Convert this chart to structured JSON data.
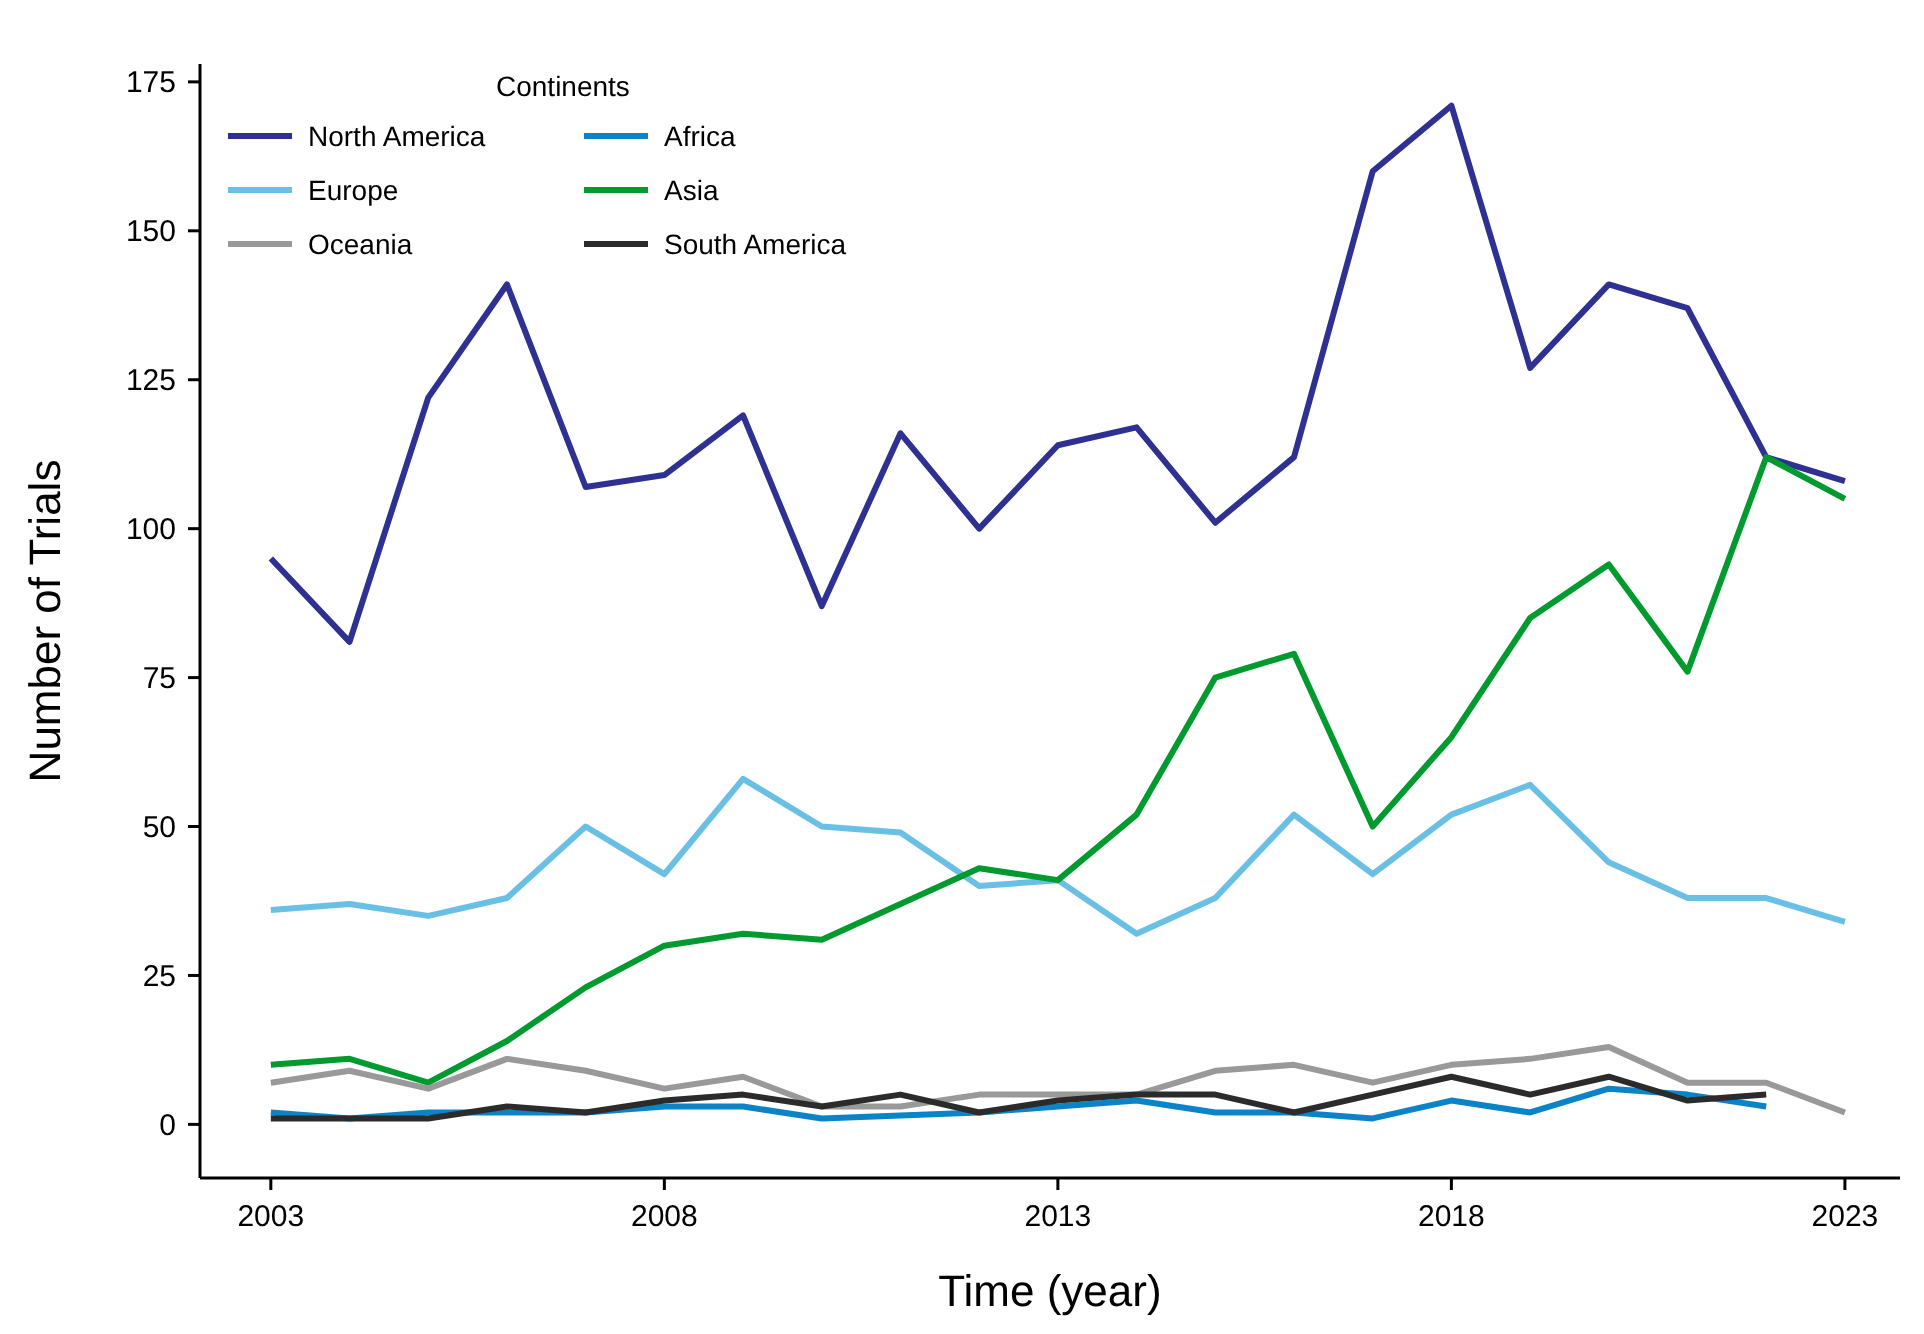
{
  "chart_data": {
    "type": "line",
    "xlabel": "Time (year)",
    "ylabel": "Number of Trials",
    "legend_title": "Continents",
    "legend": "top left",
    "grid": false,
    "x": [
      2003,
      2004,
      2005,
      2006,
      2007,
      2008,
      2009,
      2010,
      2011,
      2012,
      2013,
      2014,
      2015,
      2016,
      2017,
      2018,
      2019,
      2020,
      2021,
      2022,
      2023
    ],
    "xlim": [
      2002.1,
      2023.7
    ],
    "xticks": [
      2003,
      2008,
      2013,
      2018,
      2023
    ],
    "ylim": [
      -9,
      178
    ],
    "yticks": [
      0,
      25,
      50,
      75,
      100,
      125,
      150,
      175
    ],
    "series": [
      {
        "name": "North America",
        "color": "#2e3192",
        "values": [
          95,
          81,
          122,
          141,
          107,
          109,
          119,
          87,
          116,
          100,
          114,
          117,
          101,
          112,
          160,
          171,
          127,
          141,
          137,
          112,
          108
        ]
      },
      {
        "name": "Africa",
        "color": "#0a84c6",
        "values": [
          2,
          1,
          2,
          2,
          2,
          3,
          3,
          1,
          1.5,
          2,
          3,
          4,
          2,
          2,
          1,
          4,
          2,
          6,
          5,
          3,
          null
        ]
      },
      {
        "name": "Europe",
        "color": "#6ac0e4",
        "values": [
          36,
          37,
          35,
          38,
          50,
          42,
          58,
          50,
          49,
          40,
          41,
          32,
          38,
          52,
          42,
          52,
          57,
          44,
          38,
          38,
          34
        ]
      },
      {
        "name": "Asia",
        "color": "#009a2e",
        "values": [
          10,
          11,
          7,
          14,
          23,
          30,
          32,
          31,
          37,
          43,
          41,
          52,
          75,
          79,
          50,
          65,
          85,
          94,
          76,
          112,
          105
        ]
      },
      {
        "name": "Oceania",
        "color": "#999999",
        "values": [
          7,
          9,
          6,
          11,
          9,
          6,
          8,
          3,
          3,
          5,
          5,
          5,
          9,
          10,
          7,
          10,
          11,
          13,
          7,
          7,
          2
        ]
      },
      {
        "name": "South America",
        "color": "#2b2b2b",
        "values": [
          1,
          1,
          1,
          3,
          2,
          4,
          5,
          3,
          5,
          2,
          4,
          5,
          5,
          2,
          5,
          8,
          5,
          8,
          4,
          5,
          null
        ]
      }
    ]
  }
}
